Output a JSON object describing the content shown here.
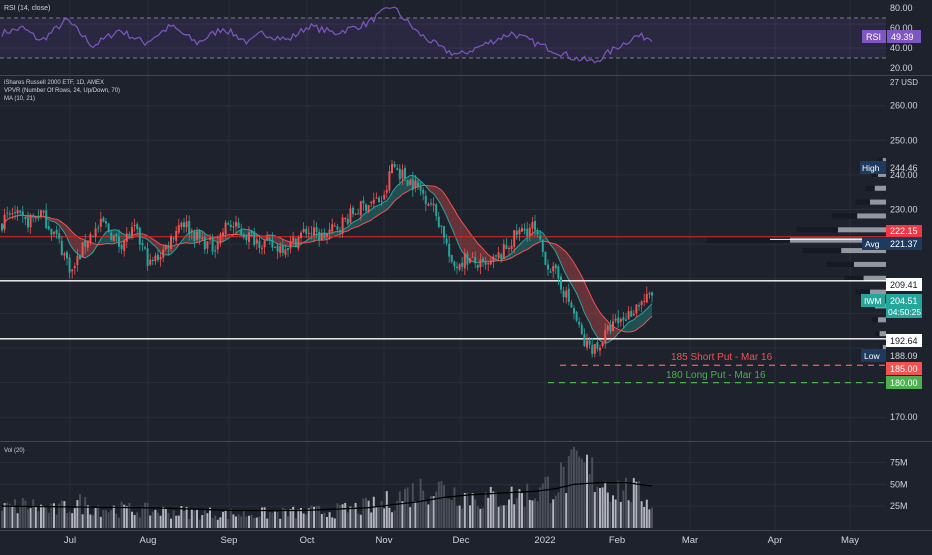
{
  "colors": {
    "background": "#1e222d",
    "grid": "#2a2e39",
    "up": "#ef5350",
    "down": "#26a69a",
    "rsi_line": "#7e57c2",
    "rsi_band": "#7e57c2",
    "ma_fast": "#26a69a",
    "ma_slow": "#ef5350",
    "white_line": "#ffffff",
    "avg_line": "#c62828",
    "short_put": "#f05350",
    "long_put": "#4caf50",
    "volume_bar": "#b2b5be",
    "volume_bar_dim": "#4a4e59",
    "volume_ma": "#000000",
    "axis_text": "#d1d4dc",
    "label_dark": "#131722",
    "label_navy": "#1e3a5f"
  },
  "rsi_pane": {
    "title": "RSI (14, close)",
    "ticks": [
      "80.00",
      "60.00",
      "40.00",
      "20.00"
    ],
    "badge_label": "RSI",
    "badge_value": "49.39"
  },
  "price_pane": {
    "legend_title": "iShares Russell 2000 ETF, 1D, AMEX",
    "legend_vpvr": "VPVR (Number Of Rows, 24, Up/Down, 70)",
    "legend_ma": "MA (10, 21)",
    "unit_label": "27 USD",
    "ticks": [
      "260.00",
      "250.00",
      "240.00",
      "230.00",
      "170.00"
    ],
    "high_label": "High",
    "high_value": "244.46",
    "low_label": "Low",
    "low_value": "188.09",
    "poc_value": "222.15",
    "avg_label": "Avg",
    "avg_value": "221.37",
    "res_value": "209.41",
    "sup_value": "192.64",
    "symbol": "IWM",
    "last_price": "204.51",
    "countdown": "04:50:25",
    "short_put_text": "185 Short Put - Mar 16",
    "short_put_value": "185.00",
    "long_put_text": "180 Long Put - Mar 16",
    "long_put_value": "180.00"
  },
  "volume_pane": {
    "title": "Vol (20)",
    "ticks": [
      "75M",
      "50M",
      "25M"
    ]
  },
  "time_axis": [
    "Jul",
    "Aug",
    "Sep",
    "Oct",
    "Nov",
    "Dec",
    "2022",
    "Feb",
    "Mar",
    "Apr",
    "May"
  ],
  "chart_data": {
    "type": "candlestick",
    "title": "iShares Russell 2000 ETF, 1D, AMEX",
    "price_ylim": [
      164,
      268
    ],
    "rsi_ylim": [
      15,
      85
    ],
    "volume_ylim": [
      0,
      95
    ],
    "price_levels": [
      {
        "value": 244.46,
        "label": "High"
      },
      {
        "value": 222.15
      },
      {
        "value": 221.37,
        "label": "Avg"
      },
      {
        "value": 209.41
      },
      {
        "value": 192.64
      },
      {
        "value": 188.09,
        "label": "Low"
      },
      {
        "value": 185.0,
        "label": "185 Short Put - Mar 16"
      },
      {
        "value": 180.0,
        "label": "180 Long Put - Mar 16"
      }
    ],
    "price_anchors": [
      [
        0,
        226
      ],
      [
        4,
        229
      ],
      [
        9,
        226
      ],
      [
        15,
        229
      ],
      [
        21,
        222
      ],
      [
        27,
        212
      ],
      [
        33,
        222
      ],
      [
        39,
        226
      ],
      [
        45,
        220
      ],
      [
        51,
        224
      ],
      [
        57,
        214
      ],
      [
        63,
        219
      ],
      [
        69,
        227
      ],
      [
        75,
        222
      ],
      [
        81,
        219
      ],
      [
        87,
        226
      ],
      [
        93,
        223
      ],
      [
        99,
        221
      ],
      [
        105,
        219
      ],
      [
        111,
        220
      ],
      [
        117,
        224
      ],
      [
        123,
        222
      ],
      [
        129,
        225
      ],
      [
        135,
        229
      ],
      [
        141,
        232
      ],
      [
        147,
        233
      ],
      [
        150,
        243
      ],
      [
        154,
        240
      ],
      [
        159,
        237
      ],
      [
        165,
        232
      ],
      [
        170,
        223
      ],
      [
        173,
        213
      ],
      [
        178,
        216
      ],
      [
        186,
        213
      ],
      [
        192,
        217
      ],
      [
        198,
        223
      ],
      [
        204,
        225
      ],
      [
        210,
        214
      ],
      [
        214,
        210
      ],
      [
        220,
        200
      ],
      [
        224,
        191
      ],
      [
        229,
        190
      ],
      [
        234,
        196
      ],
      [
        240,
        199
      ],
      [
        245,
        203
      ],
      [
        250,
        205
      ]
    ],
    "rsi_anchors": [
      [
        0,
        55
      ],
      [
        8,
        60
      ],
      [
        15,
        47
      ],
      [
        25,
        68
      ],
      [
        35,
        42
      ],
      [
        45,
        58
      ],
      [
        55,
        45
      ],
      [
        65,
        62
      ],
      [
        75,
        45
      ],
      [
        85,
        60
      ],
      [
        95,
        45
      ],
      [
        100,
        55
      ],
      [
        110,
        48
      ],
      [
        118,
        62
      ],
      [
        128,
        55
      ],
      [
        140,
        64
      ],
      [
        150,
        82
      ],
      [
        160,
        55
      ],
      [
        170,
        38
      ],
      [
        176,
        33
      ],
      [
        186,
        44
      ],
      [
        196,
        55
      ],
      [
        205,
        45
      ],
      [
        212,
        38
      ],
      [
        220,
        30
      ],
      [
        228,
        26
      ],
      [
        236,
        40
      ],
      [
        244,
        52
      ],
      [
        250,
        50
      ]
    ],
    "volume_anchors": [
      [
        0,
        22
      ],
      [
        10,
        27
      ],
      [
        20,
        20
      ],
      [
        30,
        28
      ],
      [
        40,
        22
      ],
      [
        55,
        20
      ],
      [
        70,
        18
      ],
      [
        90,
        16
      ],
      [
        110,
        17
      ],
      [
        130,
        20
      ],
      [
        145,
        26
      ],
      [
        155,
        38
      ],
      [
        165,
        48
      ],
      [
        175,
        40
      ],
      [
        185,
        33
      ],
      [
        195,
        36
      ],
      [
        205,
        40
      ],
      [
        215,
        55
      ],
      [
        222,
        70
      ],
      [
        229,
        58
      ],
      [
        235,
        46
      ],
      [
        242,
        42
      ],
      [
        250,
        30
      ]
    ],
    "volume_ma_anchors": [
      [
        0,
        25
      ],
      [
        30,
        24
      ],
      [
        60,
        23
      ],
      [
        90,
        20
      ],
      [
        115,
        20
      ],
      [
        140,
        23
      ],
      [
        160,
        30
      ],
      [
        170,
        35
      ],
      [
        180,
        38
      ],
      [
        192,
        40
      ],
      [
        205,
        42
      ],
      [
        213,
        45
      ],
      [
        220,
        50
      ],
      [
        230,
        52
      ],
      [
        240,
        52
      ],
      [
        250,
        48
      ]
    ],
    "vpvr": [
      {
        "price": 252,
        "up": 0,
        "down": 0
      },
      {
        "price": 244,
        "up": 2,
        "down": 3
      },
      {
        "price": 240,
        "up": 5,
        "down": 4
      },
      {
        "price": 236,
        "up": 7,
        "down": 6
      },
      {
        "price": 232,
        "up": 10,
        "down": 9
      },
      {
        "price": 228,
        "up": 18,
        "down": 16
      },
      {
        "price": 224,
        "up": 30,
        "down": 26
      },
      {
        "price": 221,
        "up": 60,
        "down": 52
      },
      {
        "price": 218,
        "up": 28,
        "down": 24
      },
      {
        "price": 214,
        "up": 20,
        "down": 17
      },
      {
        "price": 210,
        "up": 14,
        "down": 12
      },
      {
        "price": 206,
        "up": 10,
        "down": 9
      },
      {
        "price": 202,
        "up": 7,
        "down": 6
      },
      {
        "price": 198,
        "up": 5,
        "down": 4
      },
      {
        "price": 194,
        "up": 4,
        "down": 3
      },
      {
        "price": 190,
        "up": 2,
        "down": 2
      }
    ]
  }
}
